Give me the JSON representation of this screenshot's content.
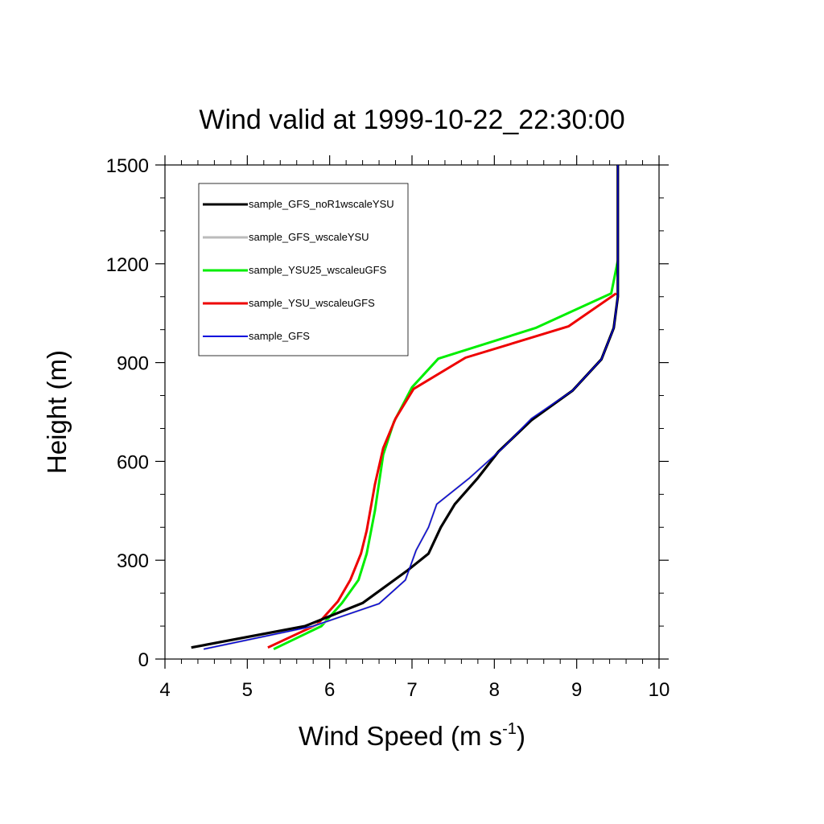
{
  "chart_data": {
    "type": "line",
    "title": "Wind valid at 1999-10-22_22:30:00",
    "xlabel": "Wind Speed (m s",
    "xlabel_superscript": "-1",
    "xlabel_suffix": ")",
    "ylabel": "Height (m)",
    "xlim": [
      4,
      10
    ],
    "ylim": [
      0,
      1500
    ],
    "xticks": [
      4,
      5,
      6,
      7,
      8,
      9,
      10
    ],
    "yticks": [
      0,
      300,
      600,
      900,
      1200,
      1500
    ],
    "grid": false,
    "legend_position": "top-left",
    "series": [
      {
        "name": "sample_GFS_noR1wscaleYSU",
        "color": "#000000",
        "points": [
          [
            4.32,
            35
          ],
          [
            5.7,
            100
          ],
          [
            6.4,
            170
          ],
          [
            6.95,
            270
          ],
          [
            7.2,
            320
          ],
          [
            7.35,
            400
          ],
          [
            7.52,
            470
          ],
          [
            7.8,
            550
          ],
          [
            8.05,
            630
          ],
          [
            8.45,
            725
          ],
          [
            8.95,
            815
          ],
          [
            9.3,
            910
          ],
          [
            9.45,
            1005
          ],
          [
            9.5,
            1100
          ],
          [
            9.5,
            1200
          ],
          [
            9.5,
            1300
          ],
          [
            9.5,
            1400
          ],
          [
            9.5,
            1500
          ]
        ]
      },
      {
        "name": "sample_GFS_wscaleYSU",
        "color": "#bbbbbb",
        "points": [
          [
            4.47,
            30
          ],
          [
            5.8,
            100
          ],
          [
            6.6,
            168
          ],
          [
            6.92,
            240
          ],
          [
            7.05,
            330
          ],
          [
            7.2,
            400
          ],
          [
            7.3,
            470
          ],
          [
            7.7,
            550
          ],
          [
            8.1,
            640
          ],
          [
            8.45,
            730
          ],
          [
            8.95,
            815
          ],
          [
            9.3,
            910
          ],
          [
            9.45,
            1005
          ],
          [
            9.5,
            1100
          ],
          [
            9.5,
            1200
          ],
          [
            9.5,
            1300
          ],
          [
            9.5,
            1400
          ],
          [
            9.5,
            1500
          ]
        ]
      },
      {
        "name": "sample_YSU25_wscaleuGFS",
        "color": "#00ee00",
        "points": [
          [
            5.32,
            30
          ],
          [
            5.9,
            100
          ],
          [
            6.15,
            170
          ],
          [
            6.35,
            240
          ],
          [
            6.45,
            320
          ],
          [
            6.55,
            450
          ],
          [
            6.65,
            620
          ],
          [
            6.78,
            720
          ],
          [
            7.0,
            825
          ],
          [
            7.32,
            912
          ],
          [
            8.5,
            1005
          ],
          [
            9.42,
            1110
          ],
          [
            9.5,
            1210
          ]
        ]
      },
      {
        "name": "sample_YSU_wscaleuGFS",
        "color": "#ee0000",
        "points": [
          [
            5.25,
            35
          ],
          [
            5.85,
            105
          ],
          [
            6.1,
            175
          ],
          [
            6.25,
            240
          ],
          [
            6.38,
            320
          ],
          [
            6.45,
            390
          ],
          [
            6.55,
            530
          ],
          [
            6.65,
            640
          ],
          [
            6.8,
            730
          ],
          [
            7.02,
            820
          ],
          [
            7.65,
            915
          ],
          [
            8.9,
            1010
          ],
          [
            9.48,
            1110
          ]
        ]
      },
      {
        "name": "sample_GFS",
        "color": "#0000dd",
        "points": [
          [
            4.47,
            30
          ],
          [
            5.8,
            100
          ],
          [
            6.6,
            168
          ],
          [
            6.92,
            240
          ],
          [
            7.05,
            330
          ],
          [
            7.2,
            400
          ],
          [
            7.3,
            470
          ],
          [
            7.7,
            550
          ],
          [
            8.1,
            640
          ],
          [
            8.45,
            730
          ],
          [
            8.95,
            815
          ],
          [
            9.3,
            910
          ],
          [
            9.45,
            1005
          ],
          [
            9.5,
            1100
          ],
          [
            9.5,
            1200
          ],
          [
            9.5,
            1300
          ],
          [
            9.5,
            1400
          ],
          [
            9.5,
            1500
          ]
        ]
      }
    ]
  }
}
